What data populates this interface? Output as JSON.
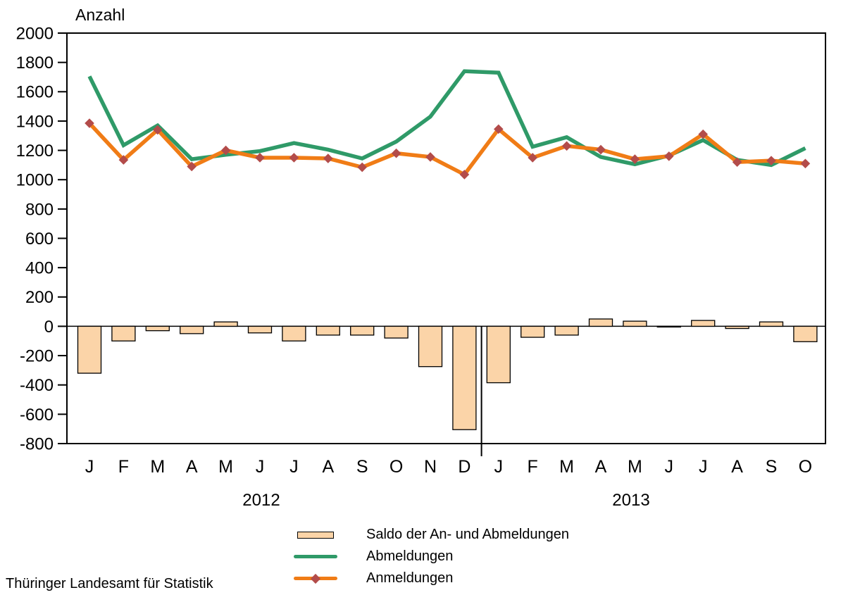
{
  "footer": "Thüringer Landesamt für Statistik",
  "colors": {
    "abmeldungen": "#2F9A68",
    "anmeldungen": "#F07C16",
    "anmeldungen_marker": "#B34C4A",
    "saldo_fill": "#FBD4A8",
    "saldo_stroke": "#000000",
    "axis": "#000000"
  },
  "legend": [
    {
      "key": "saldo",
      "label": "Saldo der An- und Abmeldungen"
    },
    {
      "key": "abmeldungen",
      "label": "Abmeldungen"
    },
    {
      "key": "anmeldungen",
      "label": "Anmeldungen"
    }
  ],
  "chart_data": {
    "type": "combo-bar-line",
    "title": "Anzahl",
    "ylabel": "Anzahl",
    "categories": [
      "J",
      "F",
      "M",
      "A",
      "M",
      "J",
      "J",
      "A",
      "S",
      "O",
      "N",
      "D",
      "J",
      "F",
      "M",
      "A",
      "M",
      "J",
      "J",
      "A",
      "S",
      "O"
    ],
    "year_groups": [
      {
        "label": "2012",
        "start": 0,
        "end": 11
      },
      {
        "label": "2013",
        "start": 12,
        "end": 21
      }
    ],
    "ylim": [
      -800,
      2000
    ],
    "ytick_step": 200,
    "ytick_labels": [
      "2000",
      "1800",
      "1600",
      "1400",
      "1200",
      "1000",
      "800",
      "600",
      "400",
      "200",
      "0",
      "-200",
      "-400",
      "-600",
      "-800"
    ],
    "grid": false,
    "legend_position": "bottom",
    "series": [
      {
        "name": "Saldo der An- und Abmeldungen",
        "type": "bar",
        "values": [
          -320,
          -100,
          -30,
          -50,
          30,
          -45,
          -100,
          -60,
          -60,
          -80,
          -275,
          -705,
          -385,
          -75,
          -60,
          50,
          35,
          -5,
          40,
          -15,
          30,
          -105
        ]
      },
      {
        "name": "Abmeldungen",
        "type": "line",
        "values": [
          1705,
          1235,
          1370,
          1140,
          1170,
          1195,
          1250,
          1205,
          1145,
          1260,
          1430,
          1740,
          1730,
          1225,
          1290,
          1155,
          1105,
          1165,
          1270,
          1135,
          1100,
          1215
        ]
      },
      {
        "name": "Anmeldungen",
        "type": "line",
        "marker": "diamond",
        "values": [
          1385,
          1135,
          1340,
          1090,
          1200,
          1150,
          1150,
          1145,
          1085,
          1180,
          1155,
          1035,
          1345,
          1150,
          1230,
          1205,
          1140,
          1160,
          1310,
          1120,
          1130,
          1110
        ]
      }
    ]
  }
}
